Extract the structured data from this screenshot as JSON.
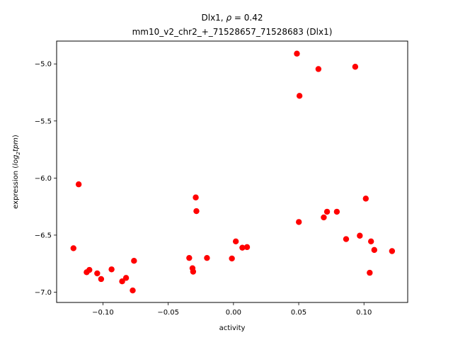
{
  "chart_data": {
    "type": "scatter",
    "title_line1": "Dlx1, ",
    "title_rho_symbol": "ρ",
    "title_rho_value": " = 0.42",
    "title_line2": "mm10_v2_chr2_+_71528657_71528683 (Dlx1)",
    "xlabel": "activity",
    "ylabel_prefix": "expression (",
    "ylabel_log": "log",
    "ylabel_sub": "2",
    "ylabel_tpm": "tpm",
    "ylabel_suffix": ")",
    "xlim": [
      -0.1355,
      0.1335
    ],
    "ylim": [
      -7.09,
      -4.8
    ],
    "xticks": [
      {
        "value": -0.1,
        "label": "−0.10"
      },
      {
        "value": -0.05,
        "label": "−0.05"
      },
      {
        "value": 0.0,
        "label": "0.00"
      },
      {
        "value": 0.05,
        "label": "0.05"
      },
      {
        "value": 0.1,
        "label": "0.10"
      }
    ],
    "yticks": [
      {
        "value": -7.0,
        "label": "−7.0"
      },
      {
        "value": -6.5,
        "label": "−6.5"
      },
      {
        "value": -6.0,
        "label": "−6.0"
      },
      {
        "value": -5.5,
        "label": "−5.5"
      },
      {
        "value": -5.0,
        "label": "−5.0"
      }
    ],
    "marker_color": "#ff0000",
    "grid": false,
    "points": [
      {
        "x": -0.1226,
        "y": -6.615
      },
      {
        "x": -0.1186,
        "y": -6.055
      },
      {
        "x": -0.1125,
        "y": -6.825
      },
      {
        "x": -0.1104,
        "y": -6.805
      },
      {
        "x": -0.1044,
        "y": -6.835
      },
      {
        "x": -0.1014,
        "y": -6.885
      },
      {
        "x": -0.0934,
        "y": -6.8
      },
      {
        "x": -0.0853,
        "y": -6.905
      },
      {
        "x": -0.0823,
        "y": -6.875
      },
      {
        "x": -0.0772,
        "y": -6.985
      },
      {
        "x": -0.0762,
        "y": -6.725
      },
      {
        "x": -0.0339,
        "y": -6.7
      },
      {
        "x": -0.0314,
        "y": -6.79
      },
      {
        "x": -0.0309,
        "y": -6.82
      },
      {
        "x": -0.0289,
        "y": -6.17
      },
      {
        "x": -0.0284,
        "y": -6.29
      },
      {
        "x": -0.0203,
        "y": -6.7
      },
      {
        "x": -0.0012,
        "y": -6.705
      },
      {
        "x": 0.0018,
        "y": -6.555
      },
      {
        "x": 0.0068,
        "y": -6.61
      },
      {
        "x": 0.0104,
        "y": -6.605
      },
      {
        "x": 0.0486,
        "y": -4.91
      },
      {
        "x": 0.0501,
        "y": -6.385
      },
      {
        "x": 0.0506,
        "y": -5.28
      },
      {
        "x": 0.0651,
        "y": -5.045
      },
      {
        "x": 0.0692,
        "y": -6.345
      },
      {
        "x": 0.0717,
        "y": -6.295
      },
      {
        "x": 0.0792,
        "y": -6.295
      },
      {
        "x": 0.0863,
        "y": -6.535
      },
      {
        "x": 0.0933,
        "y": -5.025
      },
      {
        "x": 0.0968,
        "y": -6.505
      },
      {
        "x": 0.1014,
        "y": -6.18
      },
      {
        "x": 0.1044,
        "y": -6.83
      },
      {
        "x": 0.1054,
        "y": -6.555
      },
      {
        "x": 0.1079,
        "y": -6.63
      },
      {
        "x": 0.1215,
        "y": -6.64
      }
    ]
  }
}
